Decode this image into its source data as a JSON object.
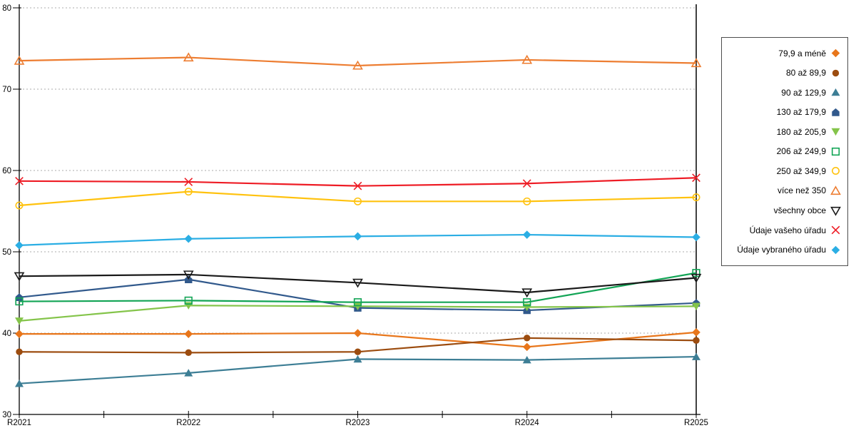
{
  "chart_data": {
    "type": "line",
    "title": "",
    "xlabel": "",
    "ylabel": "",
    "categories": [
      "R2021",
      "R2022",
      "R2023",
      "R2024",
      "R2025"
    ],
    "ylim": [
      30,
      80
    ],
    "yticks": [
      30,
      40,
      50,
      60,
      70,
      80
    ],
    "grid": "horizontal-dotted",
    "grid_color": "#ababab",
    "axis_color": "#000000",
    "legend_position": "right-box",
    "series": [
      {
        "name": "79,9 a méně",
        "marker": "diamond",
        "fill": "solid",
        "color": "#E8761B",
        "values": [
          39.9,
          39.9,
          40.0,
          38.3,
          40.1
        ]
      },
      {
        "name": "80 až 89,9",
        "marker": "circle",
        "fill": "solid",
        "color": "#9C4C0F",
        "values": [
          37.7,
          37.6,
          37.7,
          39.4,
          39.1
        ]
      },
      {
        "name": "90 až 129,9",
        "marker": "triangle-up",
        "fill": "solid",
        "color": "#3D7E95",
        "values": [
          33.8,
          35.1,
          36.8,
          36.7,
          37.1
        ]
      },
      {
        "name": "130 až 179,9",
        "marker": "pentagon",
        "fill": "solid",
        "color": "#31598C",
        "values": [
          44.4,
          46.6,
          43.1,
          42.8,
          43.7
        ]
      },
      {
        "name": "180 až 205,9",
        "marker": "triangle-down",
        "fill": "solid",
        "color": "#84C44A",
        "values": [
          41.5,
          43.4,
          43.3,
          43.2,
          43.3
        ]
      },
      {
        "name": "206 až 249,9",
        "marker": "square",
        "fill": "open",
        "color": "#12A455",
        "values": [
          43.9,
          44.0,
          43.8,
          43.8,
          47.4
        ]
      },
      {
        "name": "250 až 349,9",
        "marker": "circle",
        "fill": "open",
        "color": "#FFC20E",
        "values": [
          55.7,
          57.4,
          56.2,
          56.2,
          56.7
        ]
      },
      {
        "name": "více než 350",
        "marker": "triangle-up",
        "fill": "open",
        "color": "#ED7D31",
        "values": [
          73.5,
          73.9,
          72.9,
          73.6,
          73.2
        ]
      },
      {
        "name": "všechny obce",
        "marker": "triangle-down",
        "fill": "open",
        "color": "#1A1A1A",
        "values": [
          47.0,
          47.2,
          46.2,
          45.0,
          46.8
        ]
      },
      {
        "name": "Údaje vašeho úřadu",
        "marker": "x",
        "fill": "open",
        "color": "#EE1C25",
        "values": [
          58.7,
          58.6,
          58.1,
          58.4,
          59.1
        ]
      },
      {
        "name": "Údaje vybraného úřadu",
        "marker": "diamond",
        "fill": "solid",
        "color": "#2BAEE4",
        "values": [
          50.8,
          51.6,
          51.9,
          52.1,
          51.8
        ]
      }
    ]
  }
}
